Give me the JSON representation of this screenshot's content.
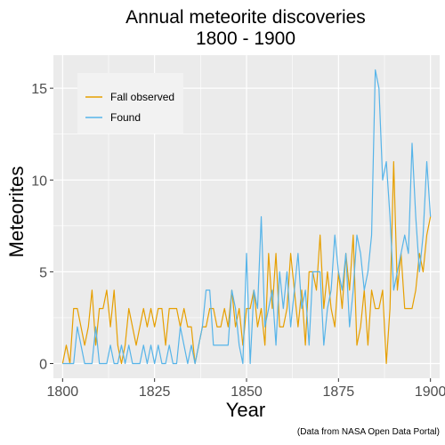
{
  "chart_data": {
    "type": "line",
    "title": [
      "Annual meteorite discoveries",
      "1800 - 1900"
    ],
    "xlabel": "Year",
    "ylabel": "Meteorites",
    "caption": "(Data from NASA Open Data Portal)",
    "xlim": [
      1797.5,
      1902.5
    ],
    "ylim": [
      -0.8,
      16.8
    ],
    "xticks": [
      1800,
      1825,
      1850,
      1875,
      1900
    ],
    "yticks": [
      0,
      5,
      10,
      15
    ],
    "grid": true,
    "legend_position": "top-left",
    "x": [
      1800,
      1801,
      1802,
      1803,
      1804,
      1805,
      1806,
      1807,
      1808,
      1809,
      1810,
      1811,
      1812,
      1813,
      1814,
      1815,
      1816,
      1817,
      1818,
      1819,
      1820,
      1821,
      1822,
      1823,
      1824,
      1825,
      1826,
      1827,
      1828,
      1829,
      1830,
      1831,
      1832,
      1833,
      1834,
      1835,
      1836,
      1837,
      1838,
      1839,
      1840,
      1841,
      1842,
      1843,
      1844,
      1845,
      1846,
      1847,
      1848,
      1849,
      1850,
      1851,
      1852,
      1853,
      1854,
      1855,
      1856,
      1857,
      1858,
      1859,
      1860,
      1861,
      1862,
      1863,
      1864,
      1865,
      1866,
      1867,
      1868,
      1869,
      1870,
      1871,
      1872,
      1873,
      1874,
      1875,
      1876,
      1877,
      1878,
      1879,
      1880,
      1881,
      1882,
      1883,
      1884,
      1885,
      1886,
      1887,
      1888,
      1889,
      1890,
      1891,
      1892,
      1893,
      1894,
      1895,
      1896,
      1897,
      1898,
      1899,
      1900
    ],
    "series": [
      {
        "name": "Fall observed",
        "color": "#E69F00",
        "values": [
          0,
          1,
          0,
          3,
          3,
          2,
          1,
          2,
          4,
          1,
          3,
          3,
          4,
          2,
          4,
          1,
          0,
          1,
          3,
          2,
          1,
          2,
          3,
          2,
          3,
          2,
          3,
          3,
          1,
          3,
          3,
          3,
          2,
          3,
          2,
          2,
          0,
          1,
          2,
          2,
          3,
          3,
          2,
          2,
          3,
          2,
          4,
          2,
          3,
          1,
          3,
          3,
          4,
          2,
          3,
          1,
          6,
          3,
          6,
          2,
          2,
          3,
          6,
          4,
          2,
          4,
          1,
          5,
          5,
          4,
          7,
          3,
          5,
          3,
          2,
          5,
          3,
          6,
          4,
          7,
          1,
          2,
          4,
          1,
          4,
          3,
          3,
          4,
          0,
          3,
          11,
          4,
          6,
          3,
          3,
          3,
          4,
          6,
          5,
          7,
          8
        ]
      },
      {
        "name": "Found",
        "color": "#56B4E9",
        "values": [
          0,
          0,
          0,
          0,
          2,
          1,
          0,
          0,
          0,
          2,
          0,
          0,
          0,
          1,
          0,
          0,
          1,
          0,
          1,
          0,
          0,
          0,
          1,
          0,
          1,
          0,
          1,
          0,
          0,
          1,
          0,
          0,
          2,
          1,
          0,
          1,
          0,
          1,
          2,
          4,
          4,
          1,
          1,
          1,
          1,
          1,
          4,
          3,
          1,
          0,
          6,
          0,
          4,
          3,
          8,
          2,
          3,
          4,
          1,
          5,
          3,
          5,
          2,
          4,
          6,
          3,
          4,
          1,
          5,
          5,
          5,
          1,
          3,
          4,
          7,
          5,
          4,
          6,
          2,
          4,
          7,
          6,
          4,
          5,
          7,
          16,
          15,
          10,
          11,
          8,
          4,
          5,
          6,
          7,
          6,
          12,
          8,
          5,
          7,
          11,
          8
        ]
      }
    ]
  }
}
